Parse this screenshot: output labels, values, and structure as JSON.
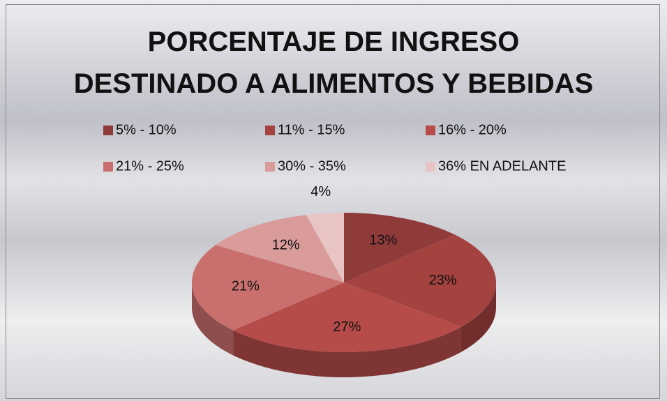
{
  "chart_data": {
    "type": "pie",
    "title": "PORCENTAJE DE INGRESO DESTINADO A ALIMENTOS Y BEBIDAS",
    "categories": [
      "5% - 10%",
      "11% - 15%",
      "16% - 20%",
      "21% - 25%",
      "30% - 35%",
      "36% EN ADELANTE"
    ],
    "values": [
      13,
      23,
      27,
      21,
      12,
      4
    ],
    "value_labels": [
      "13%",
      "23%",
      "27%",
      "21%",
      "12%",
      "4%"
    ],
    "colors": [
      "#8e3b3a",
      "#a3423f",
      "#b64c4a",
      "#c9706e",
      "#d99c9b",
      "#e8c4c4"
    ],
    "legend": "top"
  }
}
